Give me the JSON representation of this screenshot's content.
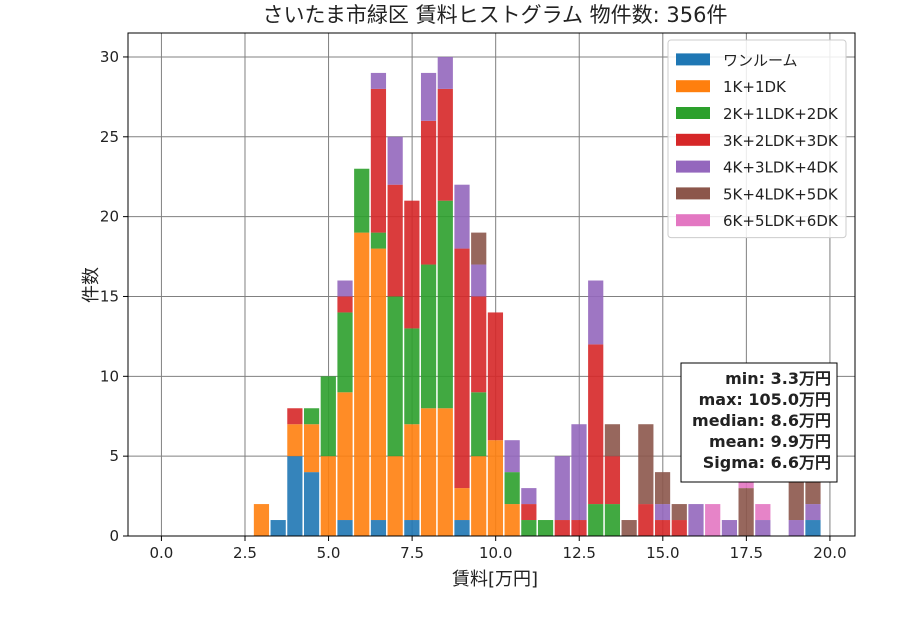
{
  "chart_data": {
    "type": "bar",
    "title": "さいたま市緑区 賃料ヒストグラム 物件数: 356件",
    "xlabel": "賃料[万円]",
    "ylabel": "件数",
    "xlim": [
      -1.0,
      20.75
    ],
    "ylim": [
      0,
      31.5
    ],
    "grid": true,
    "legend_position": "top-right",
    "bin_width": 0.5,
    "xticks": [
      0.0,
      2.5,
      5.0,
      7.5,
      10.0,
      12.5,
      15.0,
      17.5,
      20.0
    ],
    "xtick_labels": [
      "0.0",
      "2.5",
      "5.0",
      "7.5",
      "10.0",
      "12.5",
      "15.0",
      "17.5",
      "20.0"
    ],
    "yticks": [
      0,
      5,
      10,
      15,
      20,
      25,
      30
    ],
    "ytick_labels": [
      "0",
      "5",
      "10",
      "15",
      "20",
      "25",
      "30"
    ],
    "stats": [
      "min: 3.3万円",
      "max: 105.0万円",
      "median: 8.6万円",
      "mean: 9.9万円",
      "Sigma: 6.6万円"
    ],
    "categories": [
      3.0,
      3.5,
      4.0,
      4.5,
      5.0,
      5.5,
      6.0,
      6.5,
      7.0,
      7.5,
      8.0,
      8.5,
      9.0,
      9.5,
      10.0,
      10.5,
      11.0,
      11.5,
      12.0,
      12.5,
      13.0,
      13.5,
      14.0,
      14.5,
      15.0,
      15.5,
      16.0,
      16.5,
      17.0,
      17.5,
      18.0,
      19.0,
      19.5
    ],
    "series": [
      {
        "name": "ワンルーム",
        "color": "#1f77b4",
        "values": [
          0,
          1,
          5,
          4,
          0,
          1,
          0,
          1,
          0,
          1,
          0,
          0,
          1,
          0,
          0,
          0,
          0,
          0,
          0,
          0,
          0,
          0,
          0,
          0,
          0,
          0,
          0,
          0,
          0,
          0,
          0,
          0,
          1
        ]
      },
      {
        "name": "1K+1DK",
        "color": "#ff7f0e",
        "values": [
          2,
          0,
          2,
          3,
          5,
          8,
          19,
          17,
          5,
          6,
          8,
          8,
          2,
          5,
          6,
          2,
          0,
          0,
          0,
          0,
          0,
          0,
          0,
          0,
          0,
          0,
          0,
          0,
          0,
          0,
          0,
          0,
          0
        ]
      },
      {
        "name": "2K+1LDK+2DK",
        "color": "#2ca02c",
        "values": [
          0,
          0,
          0,
          1,
          5,
          5,
          4,
          1,
          10,
          6,
          9,
          13,
          0,
          4,
          0,
          2,
          1,
          1,
          0,
          0,
          2,
          2,
          0,
          0,
          0,
          0,
          0,
          0,
          0,
          0,
          0,
          0,
          0
        ]
      },
      {
        "name": "3K+2LDK+3DK",
        "color": "#d62728",
        "values": [
          0,
          0,
          1,
          0,
          0,
          1,
          0,
          9,
          7,
          8,
          9,
          7,
          15,
          6,
          8,
          0,
          1,
          0,
          1,
          1,
          10,
          3,
          0,
          2,
          1,
          1,
          0,
          0,
          0,
          0,
          0,
          0,
          0
        ]
      },
      {
        "name": "4K+3LDK+4DK",
        "color": "#9467bd",
        "values": [
          0,
          0,
          0,
          0,
          0,
          1,
          0,
          1,
          3,
          0,
          3,
          2,
          4,
          2,
          0,
          2,
          1,
          0,
          4,
          6,
          4,
          0,
          0,
          0,
          1,
          0,
          2,
          0,
          1,
          0,
          1,
          1,
          1
        ]
      },
      {
        "name": "5K+4LDK+5DK",
        "color": "#8c564b",
        "values": [
          0,
          0,
          0,
          0,
          0,
          0,
          0,
          0,
          0,
          0,
          0,
          0,
          0,
          2,
          0,
          0,
          0,
          0,
          0,
          0,
          0,
          2,
          1,
          5,
          2,
          1,
          0,
          0,
          0,
          3,
          0,
          3,
          2
        ]
      },
      {
        "name": "6K+5LDK+6DK",
        "color": "#e377c2",
        "values": [
          0,
          0,
          0,
          0,
          0,
          0,
          0,
          0,
          0,
          0,
          0,
          0,
          0,
          0,
          0,
          0,
          0,
          0,
          0,
          0,
          0,
          0,
          0,
          0,
          0,
          0,
          0,
          2,
          0,
          1,
          1,
          0,
          0
        ]
      }
    ]
  }
}
